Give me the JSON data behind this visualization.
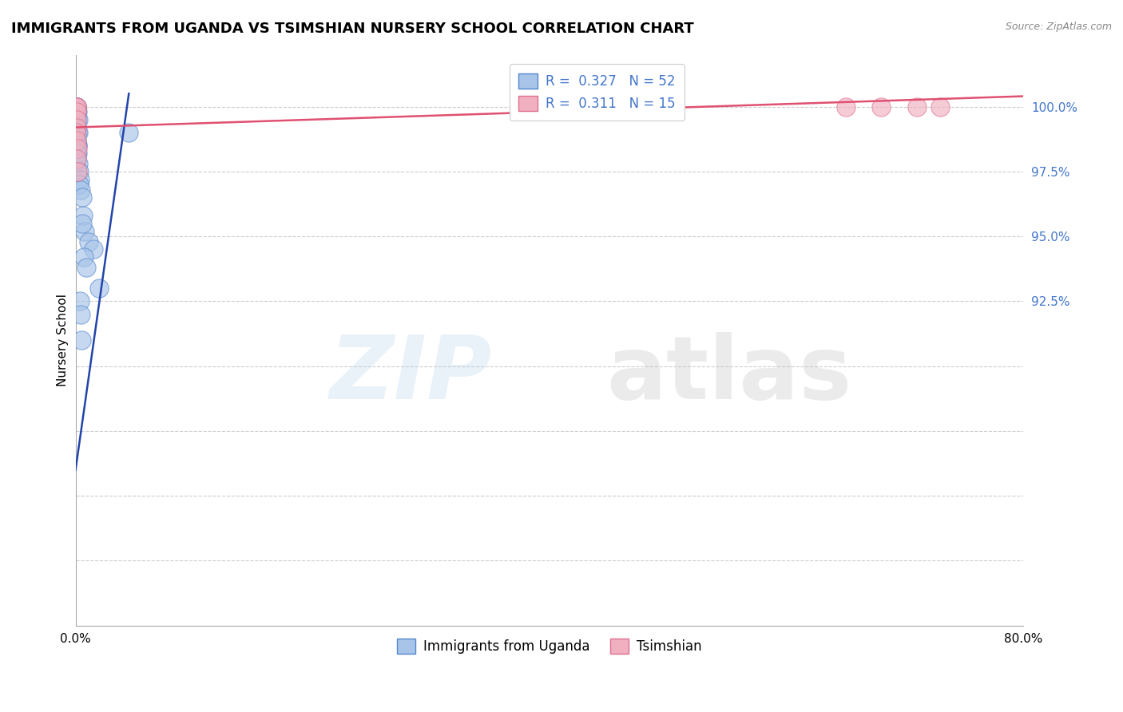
{
  "title": "IMMIGRANTS FROM UGANDA VS TSIMSHIAN NURSERY SCHOOL CORRELATION CHART",
  "source": "Source: ZipAtlas.com",
  "ylabel": "Nursery School",
  "xlim": [
    0.0,
    80.0
  ],
  "ylim": [
    80.0,
    102.0
  ],
  "blue_R": 0.327,
  "blue_N": 52,
  "pink_R": 0.311,
  "pink_N": 15,
  "legend_label_blue": "Immigrants from Uganda",
  "legend_label_pink": "Tsimshian",
  "blue_scatter_x": [
    0.05,
    0.07,
    0.08,
    0.1,
    0.1,
    0.12,
    0.06,
    0.09,
    0.11,
    0.13,
    0.07,
    0.1,
    0.05,
    0.08,
    0.12,
    0.06,
    0.09,
    0.11,
    0.14,
    0.08,
    0.05,
    0.07,
    0.1,
    0.13,
    0.06,
    0.09,
    0.12,
    0.08,
    0.11,
    0.05,
    0.2,
    0.25,
    0.15,
    0.18,
    0.22,
    0.3,
    0.35,
    0.28,
    0.45,
    0.55,
    0.65,
    0.8,
    1.1,
    1.5,
    0.7,
    0.6,
    0.9,
    2.0,
    0.38,
    0.42,
    0.5,
    4.5
  ],
  "blue_scatter_y": [
    100.0,
    100.0,
    100.0,
    100.0,
    100.0,
    100.0,
    99.8,
    99.8,
    99.8,
    99.8,
    99.6,
    99.6,
    99.5,
    99.5,
    99.4,
    99.3,
    99.2,
    99.0,
    99.0,
    98.9,
    98.8,
    98.7,
    98.6,
    98.5,
    98.4,
    98.3,
    98.2,
    98.1,
    98.0,
    97.9,
    99.5,
    99.0,
    98.5,
    98.2,
    97.8,
    97.5,
    97.2,
    97.0,
    96.8,
    96.5,
    95.8,
    95.2,
    94.8,
    94.5,
    94.2,
    95.5,
    93.8,
    93.0,
    92.5,
    92.0,
    91.0,
    99.0
  ],
  "pink_scatter_x": [
    0.05,
    0.08,
    0.1,
    0.07,
    0.12,
    0.09,
    0.06,
    0.11,
    0.14,
    0.08,
    0.13,
    65.0,
    68.0,
    71.0,
    73.0
  ],
  "pink_scatter_y": [
    100.0,
    100.0,
    100.0,
    99.8,
    99.5,
    99.2,
    99.0,
    98.7,
    98.4,
    98.0,
    97.5,
    100.0,
    100.0,
    100.0,
    100.0
  ],
  "blue_line_x": [
    0.0,
    4.5
  ],
  "blue_line_y": [
    86.0,
    100.5
  ],
  "pink_line_x": [
    0.0,
    80.0
  ],
  "pink_line_y": [
    99.2,
    100.4
  ],
  "ytick_positions": [
    80.0,
    82.5,
    85.0,
    87.5,
    90.0,
    92.5,
    95.0,
    97.5,
    100.0
  ],
  "ytick_labels": [
    "",
    "",
    "",
    "",
    "",
    "92.5%",
    "95.0%",
    "97.5%",
    "100.0%"
  ],
  "xtick_positions": [
    0.0,
    20.0,
    40.0,
    60.0,
    80.0
  ],
  "xtick_labels": [
    "0.0%",
    "",
    "",
    "",
    "80.0%"
  ],
  "grid_color": "#c8c8c8",
  "blue_face_color": "#a8c4e8",
  "blue_edge_color": "#5588cc",
  "pink_face_color": "#f0b0c0",
  "pink_edge_color": "#e07090",
  "blue_line_color": "#2244aa",
  "pink_line_color": "#e05070",
  "tick_color": "#4477cc",
  "background_color": "#ffffff",
  "title_fontsize": 13,
  "axis_label_fontsize": 11,
  "tick_fontsize": 11,
  "legend_fontsize": 12,
  "source_fontsize": 9
}
